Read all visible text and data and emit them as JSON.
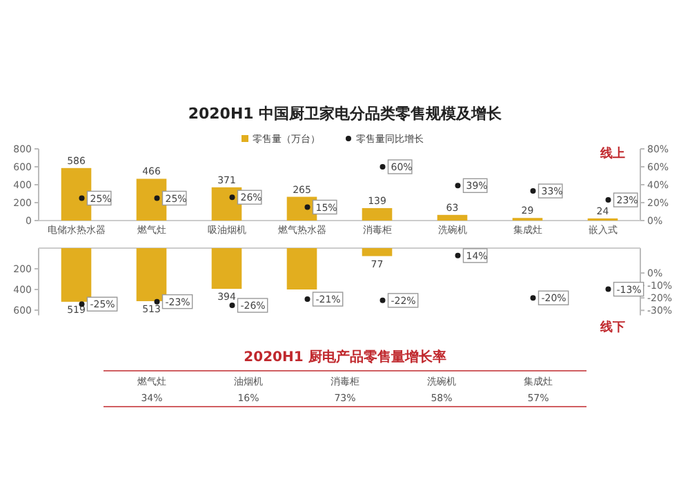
{
  "chart_data": [
    {
      "type": "bar",
      "title": "2020H1 中国厨卫家电分品类零售规模及增长",
      "categories": [
        "电储水热水器",
        "燃气灶",
        "吸油烟机",
        "燃气热水器",
        "消毒柜",
        "洗碗机",
        "集成灶",
        "嵌入式"
      ],
      "series": [
        {
          "name": "零售量（万台）",
          "type": "bar",
          "color": "#e2ae1f",
          "values": [
            586,
            466,
            371,
            265,
            139,
            63,
            29,
            24
          ],
          "value_labels": [
            "586",
            "466",
            "371",
            "265",
            "139",
            "63",
            "29",
            "24"
          ]
        },
        {
          "name": "零售量同比增长",
          "type": "scatter",
          "axis": "y2",
          "color": "#1a1a1a",
          "values": [
            25,
            25,
            26,
            15,
            60,
            39,
            33,
            23
          ],
          "value_labels": [
            "25%",
            "25%",
            "26%",
            "15%",
            "60%",
            "39%",
            "33%",
            "23%"
          ]
        }
      ],
      "ylim": [
        0,
        800
      ],
      "yticks": [
        0,
        200,
        400,
        600,
        800
      ],
      "y2lim": [
        0,
        80
      ],
      "y2ticks": [
        {
          "value": 0,
          "label": "0%"
        },
        {
          "value": 20,
          "label": "20%"
        },
        {
          "value": 40,
          "label": "40%"
        },
        {
          "value": 60,
          "label": "60%"
        },
        {
          "value": 80,
          "label": "80%"
        }
      ],
      "marker": "circle",
      "legend": "top",
      "annotations": [
        "线上"
      ]
    },
    {
      "type": "bar",
      "categories": [
        null,
        null,
        null,
        null,
        null,
        null,
        null,
        null
      ],
      "series": [
        {
          "type": "bar",
          "color": "#e2ae1f",
          "values": [
            519,
            513,
            394,
            400,
            77,
            null,
            null,
            null
          ],
          "value_labels": [
            "519",
            "513",
            "394",
            null,
            "77",
            null,
            null,
            null
          ]
        },
        {
          "type": "scatter",
          "axis": "y2",
          "color": "#1a1a1a",
          "values": [
            -25,
            -23,
            -26,
            -21,
            -22,
            14,
            -20,
            -13
          ],
          "value_labels": [
            "-25%",
            "-23%",
            "-26%",
            "-21%",
            "-22%",
            "14%",
            "-20%",
            "-13%"
          ]
        }
      ],
      "ylim": [
        650,
        0
      ],
      "yticks": [
        200,
        400,
        600
      ],
      "y2lim": [
        -34,
        20
      ],
      "y2ticks": [
        {
          "value": 0,
          "label": "0%"
        },
        {
          "value": -10,
          "label": "-10%"
        },
        {
          "value": -20,
          "label": "-20%"
        },
        {
          "value": -30,
          "label": "-30%"
        }
      ],
      "marker": "circle",
      "tick_labels": "y",
      "annotations": [
        "线下"
      ]
    },
    {
      "type": "other",
      "title": "2020H1 厨电产品零售量增长率",
      "categories": [
        "燃气灶",
        "油烟机",
        "消毒柜",
        "洗碗机",
        "集成灶"
      ],
      "value_labels": [
        "34%",
        "16%",
        "73%",
        "58%",
        "57%"
      ]
    }
  ]
}
